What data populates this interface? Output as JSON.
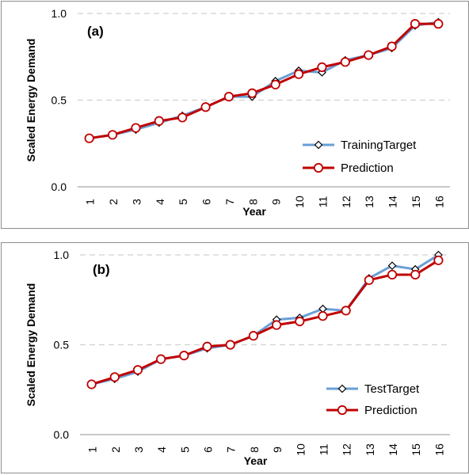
{
  "colors": {
    "target": "#6a9fd6",
    "prediction": "#c00000",
    "grid": "#d0d0d0",
    "axis": "#a6a6a6"
  },
  "chart_data": [
    {
      "type": "line",
      "panel_label": "(a)",
      "x": [
        1,
        2,
        3,
        4,
        5,
        6,
        7,
        8,
        9,
        10,
        11,
        12,
        13,
        14,
        15,
        16
      ],
      "x_tick_labels": [
        "1",
        "2",
        "3",
        "4",
        "5",
        "6",
        "7",
        "8",
        "9",
        "10",
        "11",
        "12",
        "13",
        "14",
        "15",
        "16"
      ],
      "xlabel": "Year",
      "ylabel": "Scaled Energy Demand",
      "ylim": [
        0,
        1
      ],
      "y_tick_labels": [
        "0.0",
        "0.5",
        "1.0"
      ],
      "grid": "horizontal dashed",
      "legend_position": "bottom-right",
      "series": [
        {
          "name": "TrainingTarget",
          "marker": "diamond",
          "values": [
            0.28,
            0.3,
            0.33,
            0.37,
            0.41,
            0.46,
            0.52,
            0.52,
            0.61,
            0.67,
            0.66,
            0.73,
            0.76,
            0.8,
            0.93,
            0.95
          ]
        },
        {
          "name": "Prediction",
          "marker": "circle",
          "values": [
            0.28,
            0.3,
            0.34,
            0.38,
            0.4,
            0.46,
            0.52,
            0.54,
            0.59,
            0.65,
            0.69,
            0.72,
            0.76,
            0.81,
            0.94,
            0.94
          ]
        }
      ]
    },
    {
      "type": "line",
      "panel_label": "(b)",
      "x": [
        1,
        2,
        3,
        4,
        5,
        6,
        7,
        8,
        9,
        10,
        11,
        12,
        13,
        14,
        15,
        16
      ],
      "x_tick_labels": [
        "1",
        "2",
        "3",
        "4",
        "5",
        "6",
        "7",
        "8",
        "9",
        "10",
        "11",
        "12",
        "13",
        "14",
        "15",
        "16"
      ],
      "xlabel": "Year",
      "ylabel": "Scaled Energy Demand",
      "ylim": [
        0,
        1
      ],
      "y_tick_labels": [
        "0.0",
        "0.5",
        "1.0"
      ],
      "grid": "horizontal dashed",
      "legend_position": "bottom-right",
      "series": [
        {
          "name": "TestTarget",
          "marker": "diamond",
          "values": [
            0.28,
            0.31,
            0.35,
            0.42,
            0.44,
            0.48,
            0.5,
            0.55,
            0.64,
            0.65,
            0.7,
            0.69,
            0.87,
            0.94,
            0.92,
            1.0
          ]
        },
        {
          "name": "Prediction",
          "marker": "circle",
          "values": [
            0.28,
            0.32,
            0.36,
            0.42,
            0.44,
            0.49,
            0.5,
            0.55,
            0.61,
            0.63,
            0.66,
            0.69,
            0.86,
            0.89,
            0.89,
            0.97
          ]
        }
      ]
    }
  ]
}
